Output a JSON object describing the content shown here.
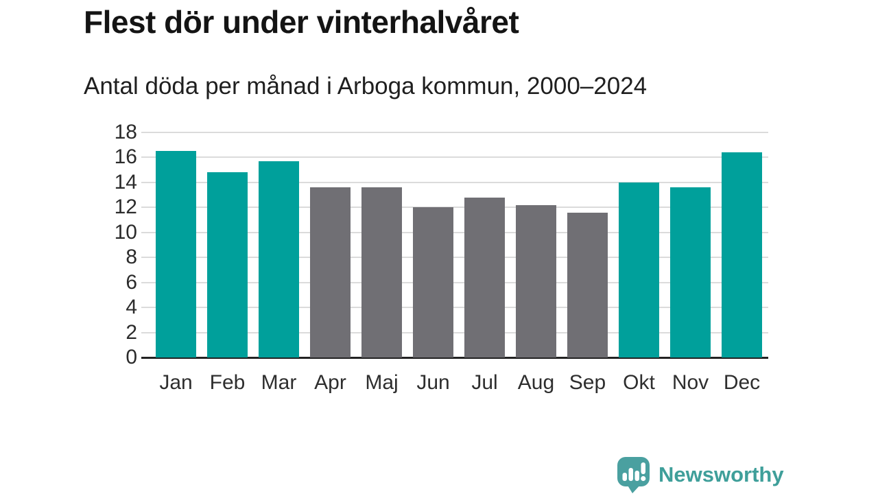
{
  "header": {
    "title": "Flest dör under vinterhalvåret",
    "subtitle": "Antal döda per månad i Arboga kommun, 2000–2024"
  },
  "chart_data": {
    "type": "bar",
    "title": "Flest dör under vinterhalvåret",
    "subtitle": "Antal döda per månad i Arboga kommun, 2000–2024",
    "categories": [
      "Jan",
      "Feb",
      "Mar",
      "Apr",
      "Maj",
      "Jun",
      "Jul",
      "Aug",
      "Sep",
      "Okt",
      "Nov",
      "Dec"
    ],
    "values": [
      16.5,
      14.8,
      15.7,
      13.6,
      13.6,
      12.0,
      12.8,
      12.2,
      11.6,
      14.0,
      13.6,
      16.4
    ],
    "bar_color_keys": [
      "teal",
      "teal",
      "teal",
      "gray",
      "gray",
      "gray",
      "gray",
      "gray",
      "gray",
      "teal",
      "teal",
      "teal"
    ],
    "xlabel": "",
    "ylabel": "",
    "ylim": [
      0,
      18
    ],
    "yticks": [
      0,
      2,
      4,
      6,
      8,
      10,
      12,
      14,
      16,
      18
    ],
    "grid": true,
    "legend": false
  },
  "colors": {
    "teal": "#00A09B",
    "gray": "#706F74",
    "gridline": "#DBDBDB",
    "axis_line": "#222222",
    "tick_label": "#2B2B2B",
    "title_text": "#141414",
    "logo_teal": "#4AA0A0",
    "logo_text_teal": "#3F9F9A"
  },
  "footer": {
    "logo_text": "Newsworthy"
  }
}
